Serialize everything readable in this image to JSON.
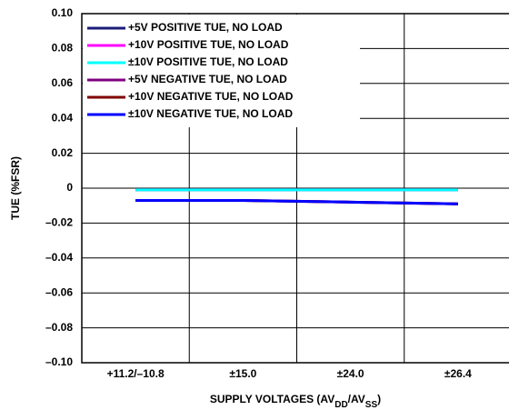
{
  "chart_data": {
    "type": "line",
    "categories": [
      "+11.2/–10.8",
      "±15.0",
      "±24.0",
      "±26.4"
    ],
    "series": [
      {
        "name": "+5V POSITIVE TUE, NO LOAD",
        "color": "#1c1c78",
        "values": [
          -0.001,
          -0.001,
          -0.001,
          -0.001
        ]
      },
      {
        "name": "+10V POSITIVE TUE, NO LOAD",
        "color": "#ff00ff",
        "values": [
          -0.001,
          -0.001,
          -0.001,
          -0.001
        ]
      },
      {
        "name": "±10V POSITIVE TUE, NO LOAD",
        "color": "#00ffff",
        "values": [
          -0.001,
          -0.001,
          -0.001,
          -0.001
        ]
      },
      {
        "name": "+5V NEGATIVE TUE, NO LOAD",
        "color": "#800080",
        "values": [
          -0.007,
          -0.007,
          -0.008,
          -0.009
        ]
      },
      {
        "name": "+10V NEGATIVE TUE, NO LOAD",
        "color": "#800000",
        "values": [
          -0.007,
          -0.007,
          -0.008,
          -0.009
        ]
      },
      {
        "name": "±10V NEGATIVE TUE, NO LOAD",
        "color": "#0000ff",
        "values": [
          -0.007,
          -0.007,
          -0.008,
          -0.009
        ]
      }
    ],
    "y_label": "TUE (%FSR)",
    "x_label": [
      "SUPPLY VOLTAGES (AV",
      "DD",
      "/AV",
      "SS",
      ")"
    ],
    "ylim": [
      -0.1,
      0.1
    ],
    "yticks": [
      {
        "value": -0.1,
        "label": "–0.10"
      },
      {
        "value": -0.08,
        "label": "–0.08"
      },
      {
        "value": -0.06,
        "label": "–0.06"
      },
      {
        "value": -0.04,
        "label": "–0.04"
      },
      {
        "value": -0.02,
        "label": "–0.02"
      },
      0,
      0.02,
      0.04,
      0.06,
      0.08,
      {
        "value": 0.1,
        "label": "0.10"
      }
    ],
    "grid": true
  }
}
